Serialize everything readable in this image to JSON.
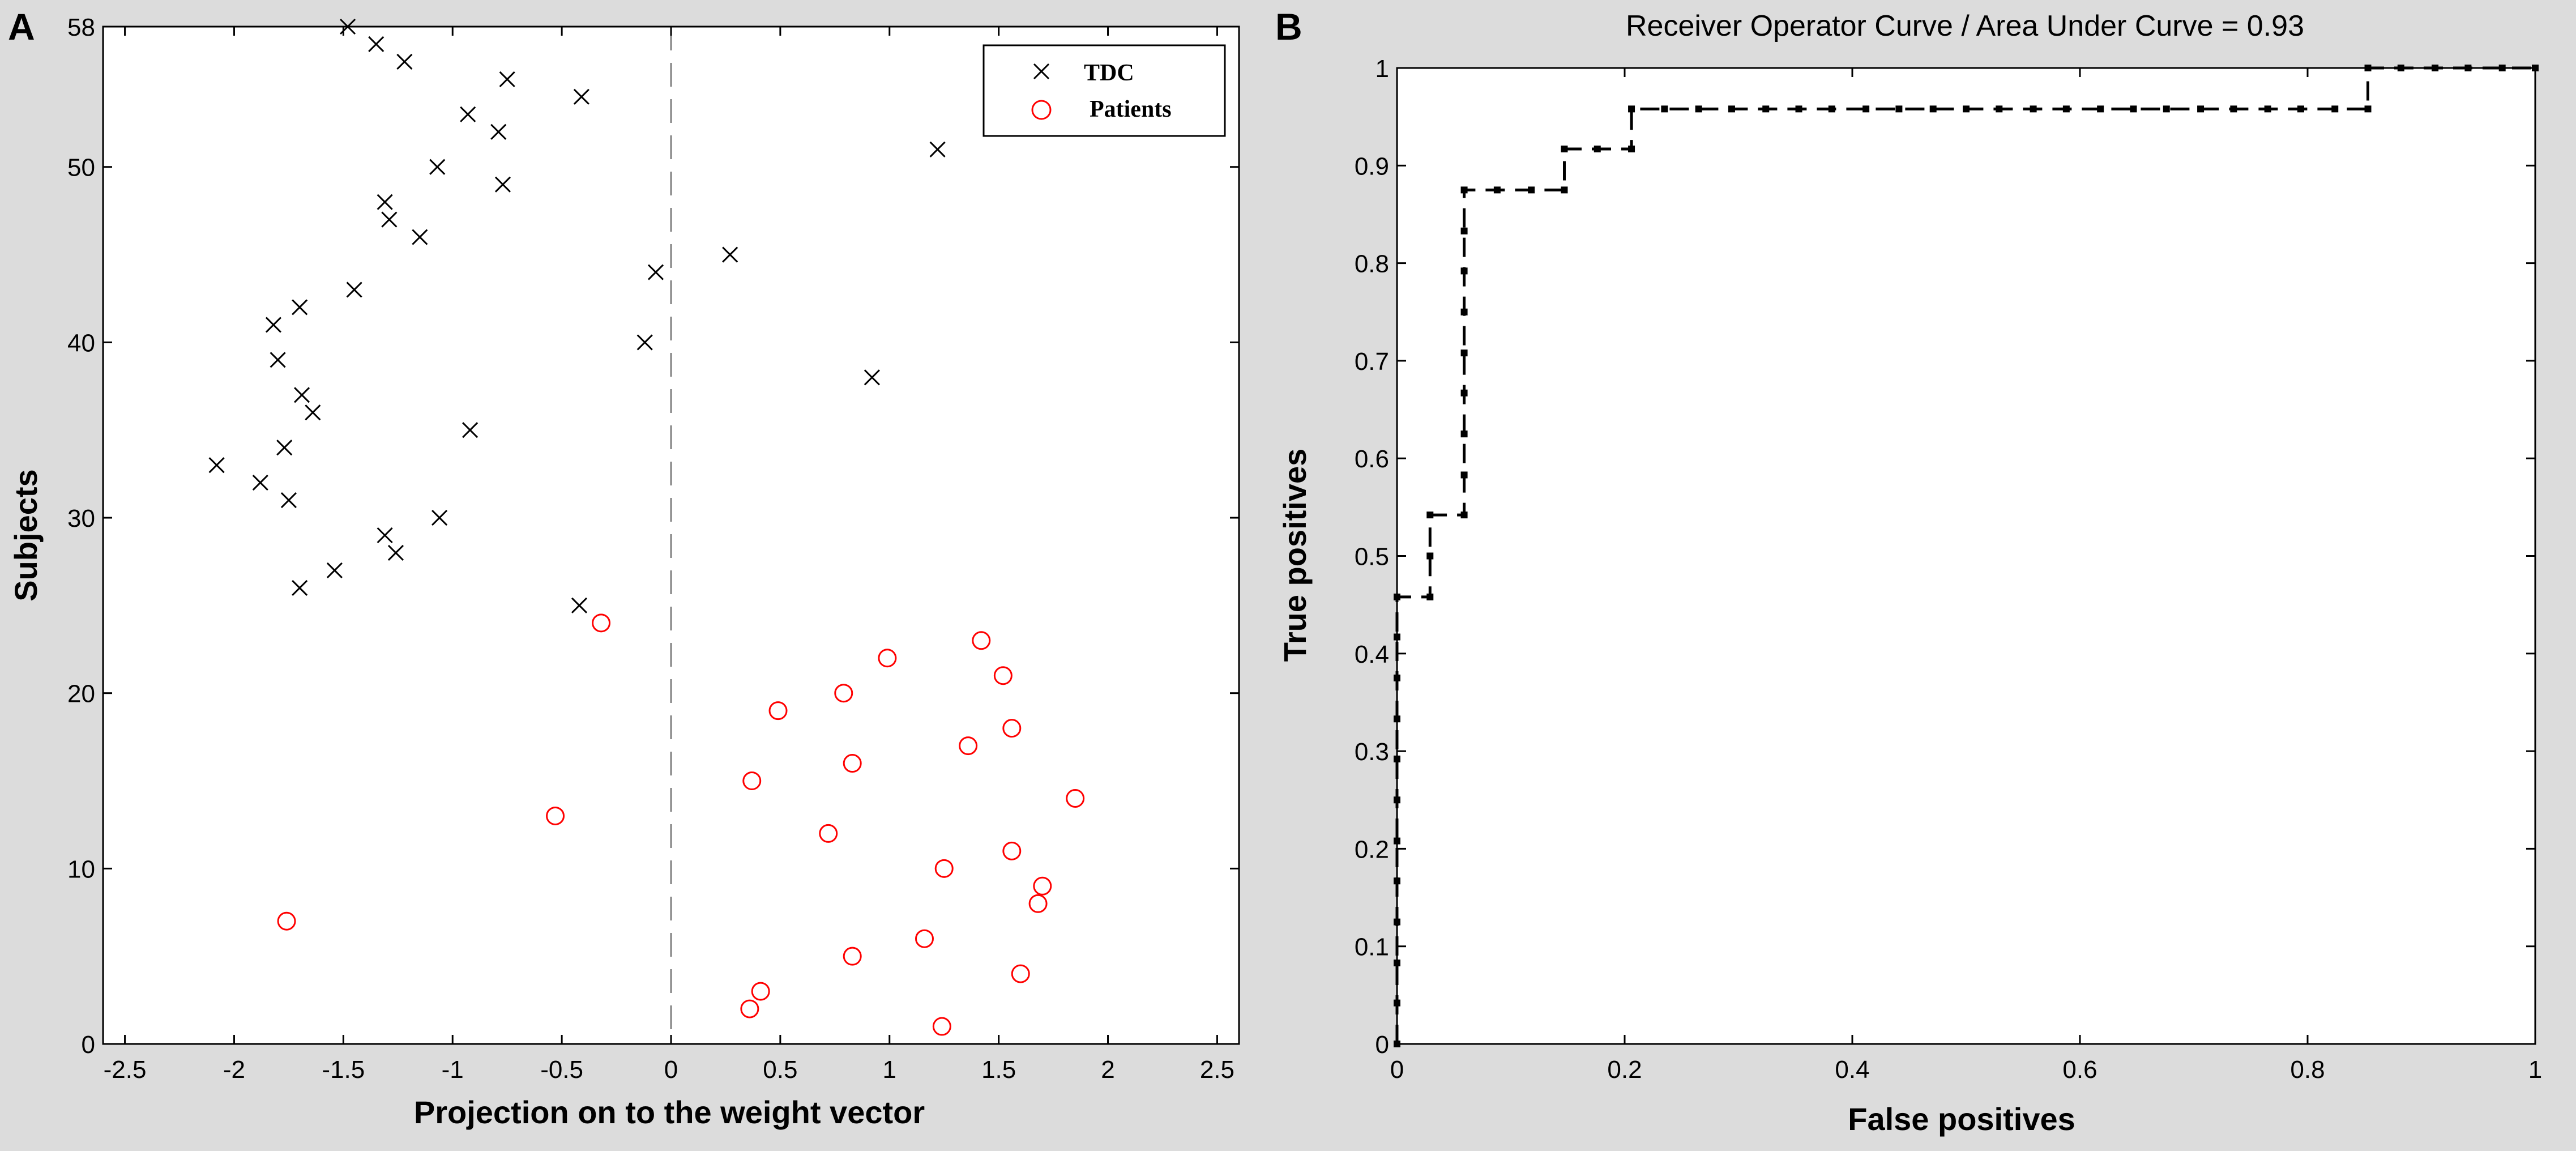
{
  "chart_data": [
    {
      "panel": "A",
      "type": "scatter",
      "title": "",
      "xlabel": "Projection on to the weight vector",
      "ylabel": "Subjects",
      "xlim": [
        -2.6,
        2.6
      ],
      "ylim": [
        0,
        58
      ],
      "xticks": [
        -2.5,
        -2,
        -1.5,
        -1,
        -0.5,
        0,
        0.5,
        1,
        1.5,
        2,
        2.5
      ],
      "xtick_labels": [
        "-2.5",
        "-2",
        "-1.5",
        "-1",
        "-0.5",
        "0",
        "0.5",
        "1",
        "1.5",
        "2",
        "2.5"
      ],
      "yticks": [
        0,
        10,
        20,
        30,
        40,
        50,
        58
      ],
      "ytick_labels": [
        "0",
        "10",
        "20",
        "30",
        "40",
        "50",
        "58"
      ],
      "reference_line_x": 0,
      "legend_position": "top-right",
      "series": [
        {
          "name": "TDC",
          "marker": "x",
          "color": "#000000",
          "points": [
            [
              -1.48,
              58
            ],
            [
              -1.35,
              57
            ],
            [
              -1.22,
              56
            ],
            [
              -0.75,
              55
            ],
            [
              -0.41,
              54
            ],
            [
              -0.93,
              53
            ],
            [
              -0.79,
              52
            ],
            [
              1.22,
              51
            ],
            [
              -1.07,
              50
            ],
            [
              -0.77,
              49
            ],
            [
              -1.31,
              48
            ],
            [
              -1.29,
              47
            ],
            [
              -1.15,
              46
            ],
            [
              0.27,
              45
            ],
            [
              -0.07,
              44
            ],
            [
              -1.45,
              43
            ],
            [
              -1.7,
              42
            ],
            [
              -1.82,
              41
            ],
            [
              -0.12,
              40
            ],
            [
              -1.8,
              39
            ],
            [
              0.92,
              38
            ],
            [
              -1.69,
              37
            ],
            [
              -1.64,
              36
            ],
            [
              -0.92,
              35
            ],
            [
              -1.77,
              34
            ],
            [
              -2.08,
              33
            ],
            [
              -1.88,
              32
            ],
            [
              -1.75,
              31
            ],
            [
              -1.06,
              30
            ],
            [
              -1.31,
              29
            ],
            [
              -1.26,
              28
            ],
            [
              -1.54,
              27
            ],
            [
              -1.7,
              26
            ],
            [
              -0.42,
              25
            ]
          ]
        },
        {
          "name": "Patients",
          "marker": "circle",
          "color": "#ff0000",
          "points": [
            [
              -0.32,
              24
            ],
            [
              1.42,
              23
            ],
            [
              0.99,
              22
            ],
            [
              1.52,
              21
            ],
            [
              0.79,
              20
            ],
            [
              0.49,
              19
            ],
            [
              1.56,
              18
            ],
            [
              1.36,
              17
            ],
            [
              0.83,
              16
            ],
            [
              0.37,
              15
            ],
            [
              1.85,
              14
            ],
            [
              -0.53,
              13
            ],
            [
              0.72,
              12
            ],
            [
              1.56,
              11
            ],
            [
              1.25,
              10
            ],
            [
              1.7,
              9
            ],
            [
              1.68,
              8
            ],
            [
              -1.76,
              7
            ],
            [
              1.16,
              6
            ],
            [
              0.83,
              5
            ],
            [
              1.6,
              4
            ],
            [
              0.41,
              3
            ],
            [
              0.36,
              2
            ],
            [
              1.24,
              1
            ]
          ]
        }
      ]
    },
    {
      "panel": "B",
      "type": "line",
      "title": "Receiver Operator Curve / Area Under Curve = 0.93",
      "xlabel": "False positives",
      "ylabel": "True positives",
      "xlim": [
        0,
        1
      ],
      "ylim": [
        0,
        1
      ],
      "xticks": [
        0,
        0.2,
        0.4,
        0.6,
        0.8,
        1
      ],
      "xtick_labels": [
        "0",
        "0.2",
        "0.4",
        "0.6",
        "0.8",
        "1"
      ],
      "yticks": [
        0,
        0.1,
        0.2,
        0.3,
        0.4,
        0.5,
        0.6,
        0.7,
        0.8,
        0.9,
        1
      ],
      "ytick_labels": [
        "0",
        "0.1",
        "0.2",
        "0.3",
        "0.4",
        "0.5",
        "0.6",
        "0.7",
        "0.8",
        "0.9",
        "1"
      ],
      "series": [
        {
          "name": "ROC",
          "line_style": "dashed",
          "marker": "square",
          "color": "#000000",
          "points": [
            [
              0,
              0
            ],
            [
              0,
              0.042
            ],
            [
              0,
              0.083
            ],
            [
              0,
              0.125
            ],
            [
              0,
              0.167
            ],
            [
              0,
              0.208
            ],
            [
              0,
              0.25
            ],
            [
              0,
              0.292
            ],
            [
              0,
              0.333
            ],
            [
              0,
              0.375
            ],
            [
              0,
              0.417
            ],
            [
              0,
              0.458
            ],
            [
              0.029,
              0.458
            ],
            [
              0.029,
              0.5
            ],
            [
              0.029,
              0.542
            ],
            [
              0.059,
              0.542
            ],
            [
              0.059,
              0.583
            ],
            [
              0.059,
              0.625
            ],
            [
              0.059,
              0.667
            ],
            [
              0.059,
              0.708
            ],
            [
              0.059,
              0.75
            ],
            [
              0.059,
              0.792
            ],
            [
              0.059,
              0.833
            ],
            [
              0.059,
              0.875
            ],
            [
              0.088,
              0.875
            ],
            [
              0.118,
              0.875
            ],
            [
              0.147,
              0.875
            ],
            [
              0.147,
              0.917
            ],
            [
              0.176,
              0.917
            ],
            [
              0.206,
              0.917
            ],
            [
              0.206,
              0.958
            ],
            [
              0.235,
              0.958
            ],
            [
              0.265,
              0.958
            ],
            [
              0.294,
              0.958
            ],
            [
              0.324,
              0.958
            ],
            [
              0.353,
              0.958
            ],
            [
              0.382,
              0.958
            ],
            [
              0.412,
              0.958
            ],
            [
              0.441,
              0.958
            ],
            [
              0.471,
              0.958
            ],
            [
              0.5,
              0.958
            ],
            [
              0.529,
              0.958
            ],
            [
              0.559,
              0.958
            ],
            [
              0.588,
              0.958
            ],
            [
              0.618,
              0.958
            ],
            [
              0.647,
              0.958
            ],
            [
              0.676,
              0.958
            ],
            [
              0.706,
              0.958
            ],
            [
              0.735,
              0.958
            ],
            [
              0.765,
              0.958
            ],
            [
              0.794,
              0.958
            ],
            [
              0.824,
              0.958
            ],
            [
              0.853,
              0.958
            ],
            [
              0.853,
              1
            ],
            [
              0.882,
              1
            ],
            [
              0.912,
              1
            ],
            [
              0.941,
              1
            ],
            [
              0.971,
              1
            ],
            [
              1,
              1
            ]
          ]
        }
      ]
    }
  ],
  "colors": {
    "figure_background": "#dcdcdc",
    "plot_background": "#ffffff",
    "tdc": "#000000",
    "patients": "#ff0000",
    "reference_line": "#808080"
  }
}
